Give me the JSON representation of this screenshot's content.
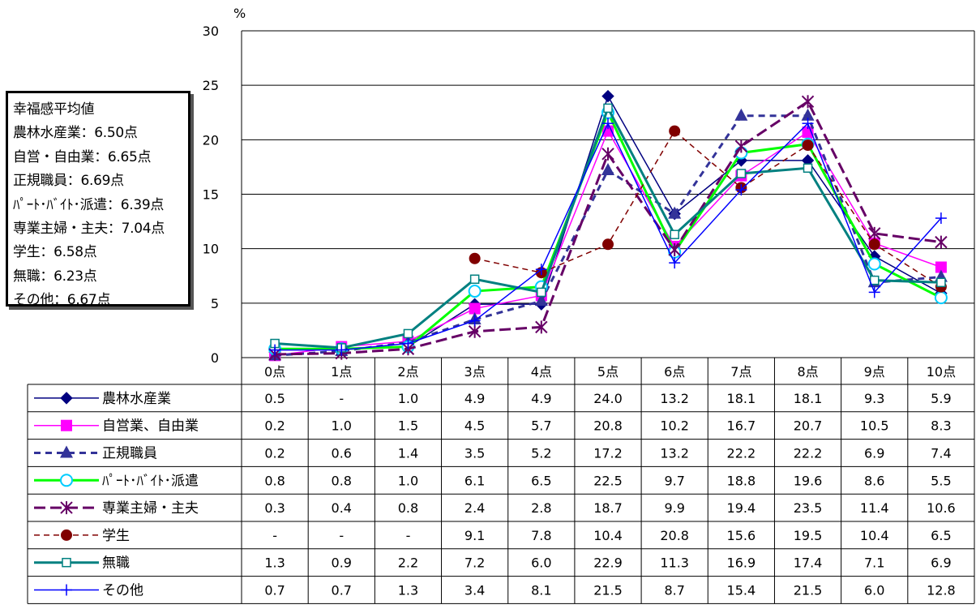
{
  "summary": {
    "title": "幸福感平均値",
    "lines": [
      "農林水産業：6.50点",
      "自営・自由業：6.65点",
      "正規職員：6.69点",
      "ﾊﾟｰﾄ･ﾊﾞｲﾄ･派遣：6.39点",
      "専業主婦・主夫：7.04点",
      "学生：6.58点",
      "無職：6.23点",
      "その他：6.67点"
    ]
  },
  "chart_data": {
    "type": "line",
    "ylabel": "%",
    "ylim": [
      0,
      30
    ],
    "yticks": [
      "0",
      "5",
      "10",
      "15",
      "20",
      "25",
      "30"
    ],
    "categories": [
      "0点",
      "1点",
      "2点",
      "3点",
      "4点",
      "5点",
      "6点",
      "7点",
      "8点",
      "9点",
      "10点"
    ],
    "grid": true,
    "series": [
      {
        "name": "農林水産業",
        "color": "#000080",
        "dash": "",
        "marker": "diamond",
        "labels": [
          "0.5",
          "-",
          "1.0",
          "4.9",
          "4.9",
          "24.0",
          "13.2",
          "18.1",
          "18.1",
          "9.3",
          "5.9"
        ],
        "values": [
          0.5,
          null,
          1.0,
          4.9,
          4.9,
          24.0,
          13.2,
          18.1,
          18.1,
          9.3,
          5.9
        ]
      },
      {
        "name": "自営業、自由業",
        "color": "#FF00FF",
        "dash": "",
        "marker": "square",
        "labels": [
          "0.2",
          "1.0",
          "1.5",
          "4.5",
          "5.7",
          "20.8",
          "10.2",
          "16.7",
          "20.7",
          "10.5",
          "8.3"
        ],
        "values": [
          0.2,
          1.0,
          1.5,
          4.5,
          5.7,
          20.8,
          10.2,
          16.7,
          20.7,
          10.5,
          8.3
        ]
      },
      {
        "name": "正規職員",
        "color": "#333399",
        "dash": "8,6",
        "marker": "triangle",
        "labels": [
          "0.2",
          "0.6",
          "1.4",
          "3.5",
          "5.2",
          "17.2",
          "13.2",
          "22.2",
          "22.2",
          "6.9",
          "7.4"
        ],
        "values": [
          0.2,
          0.6,
          1.4,
          3.5,
          5.2,
          17.2,
          13.2,
          22.2,
          22.2,
          6.9,
          7.4
        ]
      },
      {
        "name": "ﾊﾟｰﾄ･ﾊﾞｲﾄ･派遣",
        "color": "#00FF00",
        "dash": "",
        "marker": "circle-open",
        "labels": [
          "0.8",
          "0.8",
          "1.0",
          "6.1",
          "6.5",
          "22.5",
          "9.7",
          "18.8",
          "19.6",
          "8.6",
          "5.5"
        ],
        "values": [
          0.8,
          0.8,
          1.0,
          6.1,
          6.5,
          22.5,
          9.7,
          18.8,
          19.6,
          8.6,
          5.5
        ]
      },
      {
        "name": "専業主婦・主夫",
        "color": "#660066",
        "dash": "14,6",
        "marker": "asterisk",
        "labels": [
          "0.3",
          "0.4",
          "0.8",
          "2.4",
          "2.8",
          "18.7",
          "9.9",
          "19.4",
          "23.5",
          "11.4",
          "10.6"
        ],
        "values": [
          0.3,
          0.4,
          0.8,
          2.4,
          2.8,
          18.7,
          9.9,
          19.4,
          23.5,
          11.4,
          10.6
        ]
      },
      {
        "name": "学生",
        "color": "#800000",
        "dash": "7,5",
        "marker": "circle",
        "labels": [
          "-",
          "-",
          "-",
          "9.1",
          "7.8",
          "10.4",
          "20.8",
          "15.6",
          "19.5",
          "10.4",
          "6.5"
        ],
        "values": [
          null,
          null,
          null,
          9.1,
          7.8,
          10.4,
          20.8,
          15.6,
          19.5,
          10.4,
          6.5
        ]
      },
      {
        "name": "無職",
        "color": "#008080",
        "dash": "",
        "marker": "square-open",
        "labels": [
          "1.3",
          "0.9",
          "2.2",
          "7.2",
          "6.0",
          "22.9",
          "11.3",
          "16.9",
          "17.4",
          "7.1",
          "6.9"
        ],
        "values": [
          1.3,
          0.9,
          2.2,
          7.2,
          6.0,
          22.9,
          11.3,
          16.9,
          17.4,
          7.1,
          6.9
        ]
      },
      {
        "name": "その他",
        "color": "#0000FF",
        "dash": "",
        "marker": "plus",
        "labels": [
          "0.7",
          "0.7",
          "1.3",
          "3.4",
          "8.1",
          "21.5",
          "8.7",
          "15.4",
          "21.5",
          "6.0",
          "12.8"
        ],
        "values": [
          0.7,
          0.7,
          1.3,
          3.4,
          8.1,
          21.5,
          8.7,
          15.4,
          21.5,
          6.0,
          12.8
        ]
      }
    ]
  }
}
